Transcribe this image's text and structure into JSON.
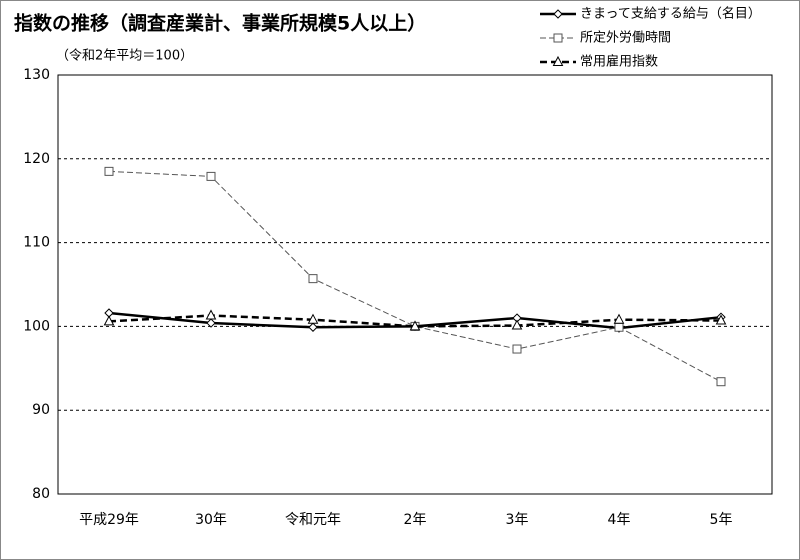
{
  "chart_data": {
    "type": "line",
    "title": "指数の推移（調査産業計、事業所規模5人以上）",
    "subtitle": "（令和2年平均＝100）",
    "categories": [
      "平成29年",
      "30年",
      "令和元年",
      "2年",
      "3年",
      "4年",
      "5年"
    ],
    "series": [
      {
        "name": "きまって支給する給与（名目）",
        "color": "#000000",
        "marker": "diamond",
        "dash": "solid",
        "values": [
          101.6,
          100.4,
          99.9,
          100.0,
          101.0,
          99.8,
          101.1
        ]
      },
      {
        "name": "所定外労働時間",
        "color": "#555555",
        "marker": "square",
        "dash": "thin-dash",
        "values": [
          118.5,
          117.9,
          105.7,
          100.0,
          97.3,
          99.9,
          93.4
        ]
      },
      {
        "name": "常用雇用指数",
        "color": "#000000",
        "marker": "triangle",
        "dash": "bold-dash",
        "values": [
          100.6,
          101.3,
          100.8,
          100.0,
          100.1,
          100.8,
          100.7
        ]
      }
    ],
    "ylim": [
      80,
      130
    ],
    "yticks": [
      80,
      90,
      100,
      110,
      120,
      130
    ],
    "grid": true,
    "legend": "top-right"
  }
}
